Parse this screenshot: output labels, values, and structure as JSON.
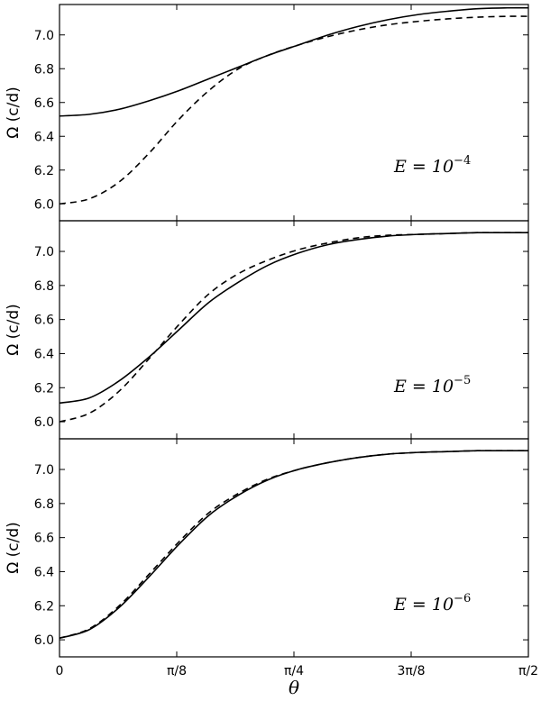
{
  "chart_data": [
    {
      "type": "line",
      "panel": "top",
      "ylabel": "Ω (c/d)",
      "ylim": [
        5.9,
        7.18
      ],
      "xlim": [
        0,
        1.5708
      ],
      "annotation": {
        "base": "E = 10",
        "exponent": "−4"
      },
      "yticks": [
        "6.0",
        "6.2",
        "6.4",
        "6.6",
        "6.8",
        "7.0"
      ],
      "series": [
        {
          "style": "solid",
          "x": [
            0,
            0.1,
            0.2,
            0.3,
            0.4,
            0.5,
            0.6,
            0.7,
            0.8,
            0.9,
            1.0,
            1.1,
            1.2,
            1.3,
            1.4,
            1.5,
            1.5708
          ],
          "y": [
            6.52,
            6.53,
            6.56,
            6.61,
            6.67,
            6.74,
            6.81,
            6.88,
            6.94,
            7.0,
            7.05,
            7.09,
            7.12,
            7.14,
            7.155,
            7.16,
            7.16
          ]
        },
        {
          "style": "dashed",
          "x": [
            0,
            0.1,
            0.2,
            0.3,
            0.4,
            0.5,
            0.6,
            0.7,
            0.8,
            0.9,
            1.0,
            1.1,
            1.2,
            1.3,
            1.4,
            1.5,
            1.5708
          ],
          "y": [
            6.0,
            6.03,
            6.13,
            6.3,
            6.5,
            6.67,
            6.8,
            6.88,
            6.94,
            6.99,
            7.03,
            7.06,
            7.08,
            7.095,
            7.105,
            7.11,
            7.11
          ]
        }
      ]
    },
    {
      "type": "line",
      "panel": "middle",
      "ylabel": "Ω (c/d)",
      "ylim": [
        5.9,
        7.18
      ],
      "xlim": [
        0,
        1.5708
      ],
      "annotation": {
        "base": "E = 10",
        "exponent": "−5"
      },
      "yticks": [
        "6.0",
        "6.2",
        "6.4",
        "6.6",
        "6.8",
        "7.0"
      ],
      "series": [
        {
          "style": "solid",
          "x": [
            0,
            0.1,
            0.2,
            0.3,
            0.4,
            0.5,
            0.6,
            0.7,
            0.8,
            0.9,
            1.0,
            1.1,
            1.2,
            1.3,
            1.4,
            1.5,
            1.5708
          ],
          "y": [
            6.11,
            6.14,
            6.24,
            6.38,
            6.54,
            6.7,
            6.82,
            6.92,
            6.99,
            7.04,
            7.07,
            7.09,
            7.1,
            7.105,
            7.11,
            7.11,
            7.11
          ]
        },
        {
          "style": "dashed",
          "x": [
            0,
            0.1,
            0.2,
            0.3,
            0.4,
            0.5,
            0.6,
            0.7,
            0.8,
            0.9,
            1.0,
            1.1,
            1.2,
            1.3,
            1.4,
            1.5,
            1.5708
          ],
          "y": [
            6.0,
            6.05,
            6.18,
            6.37,
            6.57,
            6.75,
            6.87,
            6.95,
            7.01,
            7.05,
            7.08,
            7.095,
            7.1,
            7.105,
            7.11,
            7.11,
            7.11
          ]
        }
      ]
    },
    {
      "type": "line",
      "panel": "bottom",
      "ylabel": "Ω (c/d)",
      "xlabel": "θ",
      "ylim": [
        5.9,
        7.18
      ],
      "xlim": [
        0,
        1.5708
      ],
      "annotation": {
        "base": "E = 10",
        "exponent": "−6"
      },
      "yticks": [
        "6.0",
        "6.2",
        "6.4",
        "6.6",
        "6.8",
        "7.0"
      ],
      "xticks": [
        {
          "label": "0",
          "value": 0
        },
        {
          "label": "π/8",
          "value": 0.3927
        },
        {
          "label": "π/4",
          "value": 0.7854
        },
        {
          "label": "3π/8",
          "value": 1.1781
        },
        {
          "label": "π/2",
          "value": 1.5708
        }
      ],
      "series": [
        {
          "style": "solid",
          "x": [
            0,
            0.1,
            0.2,
            0.3,
            0.4,
            0.5,
            0.6,
            0.7,
            0.8,
            0.9,
            1.0,
            1.1,
            1.2,
            1.3,
            1.4,
            1.5,
            1.5708
          ],
          "y": [
            6.01,
            6.06,
            6.19,
            6.37,
            6.56,
            6.73,
            6.85,
            6.94,
            7.0,
            7.04,
            7.07,
            7.09,
            7.1,
            7.105,
            7.11,
            7.11,
            7.11
          ]
        },
        {
          "style": "dashed",
          "x": [
            0,
            0.1,
            0.2,
            0.3,
            0.4,
            0.5,
            0.6,
            0.7,
            0.8,
            0.9,
            1.0,
            1.1,
            1.2,
            1.3,
            1.4,
            1.5,
            1.5708
          ],
          "y": [
            6.01,
            6.065,
            6.2,
            6.385,
            6.575,
            6.745,
            6.86,
            6.945,
            7.0,
            7.04,
            7.07,
            7.09,
            7.1,
            7.105,
            7.11,
            7.11,
            7.11
          ]
        }
      ]
    }
  ]
}
